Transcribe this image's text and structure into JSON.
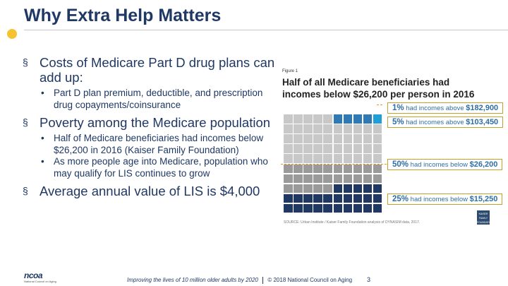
{
  "slide": {
    "title": "Why Extra Help Matters",
    "bullets": [
      {
        "marker": "§",
        "text": "Costs of Medicare Part D drug plans can add up:",
        "subs": [
          "Part D plan premium, deductible, and prescription drug copayments/coinsurance"
        ]
      },
      {
        "marker": "§",
        "text": "Poverty among the Medicare population",
        "subs": [
          "Half of Medicare beneficiaries had incomes below $26,200 in 2016 (Kaiser Family Foundation)",
          "As more people age into Medicare, population who may qualify for LIS continues to grow"
        ]
      },
      {
        "marker": "§",
        "text": "Average annual value of LIS is $4,000",
        "subs": []
      }
    ],
    "sub_marker": "•"
  },
  "figure": {
    "label": "Figure 1",
    "title": "Half of all Medicare beneficiaries had incomes below $26,200 per person in 2016",
    "callouts": [
      {
        "pct": "1%",
        "text": "had incomes above",
        "amount": "$182,900"
      },
      {
        "pct": "5%",
        "text": "had incomes above",
        "amount": "$103,450"
      },
      {
        "pct": "50%",
        "text": "had incomes below",
        "amount": "$26,200"
      },
      {
        "pct": "25%",
        "text": "had incomes below",
        "amount": "$15,250"
      }
    ],
    "source": "SOURCE: Urban Institute / Kaiser Family Foundation analysis of DYNASIM data, 2017.",
    "logo_text": "KAISER FAMILY FOUNDATION",
    "colors": {
      "top_1": "#1f9fd6",
      "top_5": "#2f79b5",
      "above_median": "#c8c8c8",
      "below_median": "#9a9a9a",
      "bottom_25": "#1f3864",
      "callout_border": "#c5a02b",
      "median_line": "#e6952c"
    }
  },
  "footer": {
    "org": "ncoa",
    "org_sub": "National Council on Aging",
    "tagline": "Improving the lives of 10 million older adults by 2020",
    "copyright": "© 2018 National Council on Aging",
    "page": "3"
  },
  "accent": {
    "dot": "#f4c430",
    "text": "#1f3864"
  }
}
